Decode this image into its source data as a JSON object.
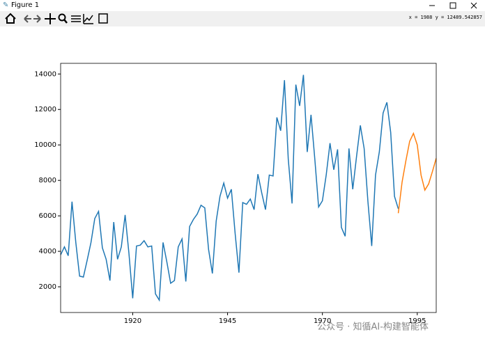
{
  "window": {
    "title": "Figure 1",
    "coords": "x = 1988    y = 12489.542857",
    "watermark": "公众号 · 知循AI-构建智能体"
  },
  "chart_data": {
    "type": "line",
    "xlim": [
      1901,
      2000
    ],
    "ylim": [
      550,
      14600
    ],
    "xticks": [
      1920,
      1945,
      1970,
      1995
    ],
    "yticks": [
      2000,
      4000,
      6000,
      8000,
      10000,
      12000,
      14000
    ],
    "series": [
      {
        "color": "#1f77b4",
        "x": [
          1901,
          1902,
          1903,
          1904,
          1905,
          1906,
          1907,
          1908,
          1909,
          1910,
          1911,
          1912,
          1913,
          1914,
          1915,
          1916,
          1917,
          1918,
          1919,
          1920,
          1921,
          1922,
          1923,
          1924,
          1925,
          1926,
          1927,
          1928,
          1929,
          1930,
          1931,
          1932,
          1933,
          1934,
          1935,
          1936,
          1937,
          1938,
          1939,
          1940,
          1941,
          1942,
          1943,
          1944,
          1945,
          1946,
          1947,
          1948,
          1949,
          1950,
          1951,
          1952,
          1953,
          1954,
          1955,
          1956,
          1957,
          1958,
          1959,
          1960,
          1961,
          1962,
          1963,
          1964,
          1965,
          1966,
          1967,
          1968,
          1969,
          1970,
          1971,
          1972,
          1973,
          1974,
          1975,
          1976,
          1977,
          1978,
          1979,
          1980,
          1981,
          1982,
          1983,
          1984,
          1985,
          1986,
          1987,
          1988,
          1989,
          1990
        ],
        "values": [
          3800,
          4250,
          3750,
          6800,
          4500,
          2600,
          2550,
          3500,
          4500,
          5850,
          6250,
          4200,
          3550,
          2350,
          5650,
          3550,
          4250,
          6050,
          3900,
          1350,
          4300,
          4350,
          4600,
          4250,
          4300,
          1600,
          1250,
          4500,
          3400,
          2200,
          2350,
          4250,
          4700,
          2300,
          5400,
          5800,
          6100,
          6600,
          6450,
          4100,
          2750,
          5700,
          7100,
          7850,
          7000,
          7500,
          5000,
          2800,
          6750,
          6650,
          6950,
          6350,
          8350,
          7300,
          6350,
          8300,
          8250,
          11550,
          10800,
          13650,
          9200,
          6700,
          13400,
          12200,
          13950,
          9600,
          11700,
          9200,
          6500,
          6850,
          8300,
          10100,
          8600,
          9750,
          5350,
          4850,
          9800,
          7500,
          9350,
          11100,
          9800,
          6800,
          4300,
          8300,
          9600,
          11800,
          12400,
          10700,
          7100,
          6400
        ]
      },
      {
        "color": "#ff7f0e",
        "x": [
          1990,
          1991,
          1992,
          1993,
          1994,
          1995,
          1996,
          1997,
          1998,
          1999,
          2000
        ],
        "values": [
          6150,
          7900,
          9100,
          10200,
          10650,
          10000,
          8300,
          7450,
          7800,
          8500,
          9250
        ]
      }
    ]
  }
}
